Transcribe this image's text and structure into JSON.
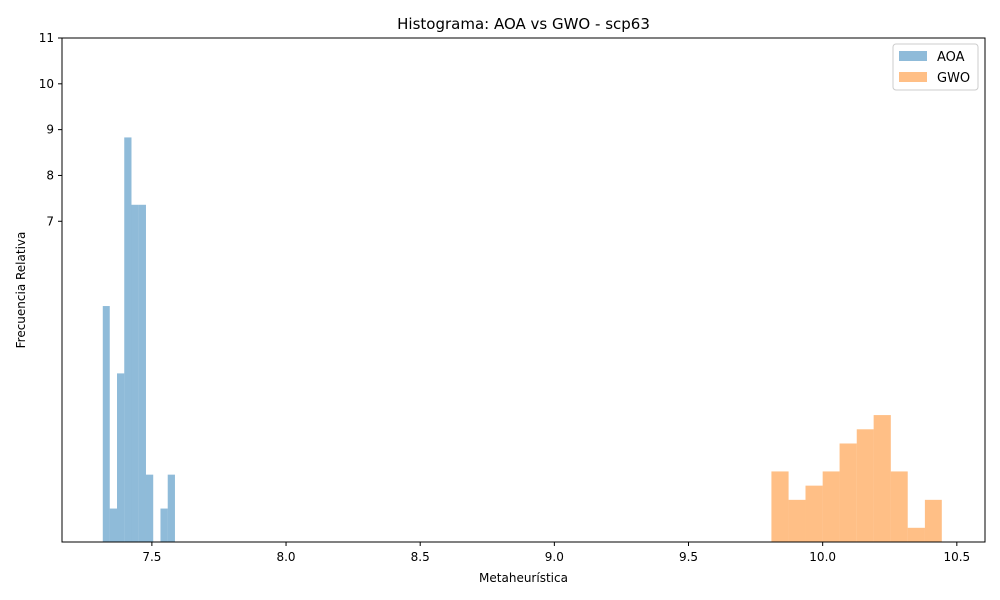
{
  "chart_data": {
    "type": "bar",
    "title": "Histograma: AOA vs GWO - scp63",
    "xlabel": "Metaheurística",
    "ylabel": "Frecuencia Relativa",
    "xlim": [
      7.165,
      10.605
    ],
    "ylim": [
      0,
      11
    ],
    "x_ticks": [
      "7.5",
      "8.0",
      "8.5",
      "9.0",
      "9.5",
      "10.0",
      "10.5"
    ],
    "y_ticks": [
      "7",
      "8",
      "9",
      "10",
      "11"
    ],
    "legend_position": "top-right",
    "grid": false,
    "series": [
      {
        "name": "AOA",
        "color": "#1f77b4",
        "opacity": 0.5,
        "bins": [
          {
            "x0": 7.317,
            "x1": 7.343,
            "value": 5.15
          },
          {
            "x0": 7.343,
            "x1": 7.37,
            "value": 0.73
          },
          {
            "x0": 7.37,
            "x1": 7.397,
            "value": 3.68
          },
          {
            "x0": 7.397,
            "x1": 7.424,
            "value": 8.83
          },
          {
            "x0": 7.424,
            "x1": 7.451,
            "value": 7.36
          },
          {
            "x0": 7.451,
            "x1": 7.478,
            "value": 7.36
          },
          {
            "x0": 7.478,
            "x1": 7.505,
            "value": 1.47
          },
          {
            "x0": 7.505,
            "x1": 7.532,
            "value": 0
          },
          {
            "x0": 7.532,
            "x1": 7.559,
            "value": 0.73
          },
          {
            "x0": 7.559,
            "x1": 7.586,
            "value": 1.47
          }
        ]
      },
      {
        "name": "GWO",
        "color": "#ff7f0e",
        "opacity": 0.5,
        "bins": [
          {
            "x0": 9.809,
            "x1": 9.873,
            "value": 1.54
          },
          {
            "x0": 9.873,
            "x1": 9.936,
            "value": 0.92
          },
          {
            "x0": 9.936,
            "x1": 10.0,
            "value": 1.23
          },
          {
            "x0": 10.0,
            "x1": 10.063,
            "value": 1.54
          },
          {
            "x0": 10.063,
            "x1": 10.127,
            "value": 2.15
          },
          {
            "x0": 10.127,
            "x1": 10.19,
            "value": 2.46
          },
          {
            "x0": 10.19,
            "x1": 10.254,
            "value": 2.77
          },
          {
            "x0": 10.254,
            "x1": 10.317,
            "value": 1.54
          },
          {
            "x0": 10.317,
            "x1": 10.381,
            "value": 0.31
          },
          {
            "x0": 10.381,
            "x1": 10.444,
            "value": 0.92
          }
        ]
      }
    ]
  }
}
